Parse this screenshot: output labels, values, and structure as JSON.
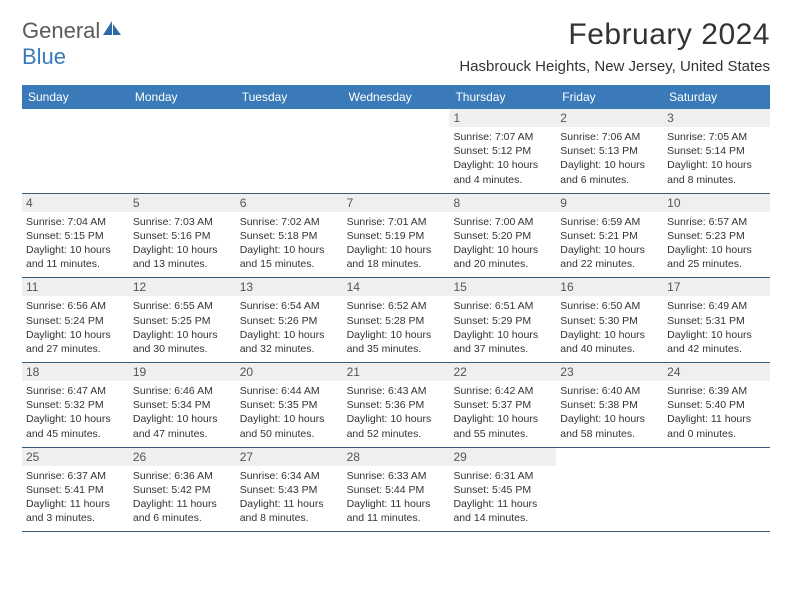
{
  "logo": {
    "part1": "General",
    "part2": "Blue"
  },
  "title": "February 2024",
  "subtitle": "Hasbrouck Heights, New Jersey, United States",
  "colors": {
    "header_bg": "#3a7ab8",
    "header_text": "#ffffff",
    "date_bg": "#efefef",
    "rule": "#3a5a7a",
    "text": "#333333"
  },
  "day_headers": [
    "Sunday",
    "Monday",
    "Tuesday",
    "Wednesday",
    "Thursday",
    "Friday",
    "Saturday"
  ],
  "weeks": [
    [
      {
        "date": "",
        "lines": []
      },
      {
        "date": "",
        "lines": []
      },
      {
        "date": "",
        "lines": []
      },
      {
        "date": "",
        "lines": []
      },
      {
        "date": "1",
        "lines": [
          "Sunrise: 7:07 AM",
          "Sunset: 5:12 PM",
          "Daylight: 10 hours",
          "and 4 minutes."
        ]
      },
      {
        "date": "2",
        "lines": [
          "Sunrise: 7:06 AM",
          "Sunset: 5:13 PM",
          "Daylight: 10 hours",
          "and 6 minutes."
        ]
      },
      {
        "date": "3",
        "lines": [
          "Sunrise: 7:05 AM",
          "Sunset: 5:14 PM",
          "Daylight: 10 hours",
          "and 8 minutes."
        ]
      }
    ],
    [
      {
        "date": "4",
        "lines": [
          "Sunrise: 7:04 AM",
          "Sunset: 5:15 PM",
          "Daylight: 10 hours",
          "and 11 minutes."
        ]
      },
      {
        "date": "5",
        "lines": [
          "Sunrise: 7:03 AM",
          "Sunset: 5:16 PM",
          "Daylight: 10 hours",
          "and 13 minutes."
        ]
      },
      {
        "date": "6",
        "lines": [
          "Sunrise: 7:02 AM",
          "Sunset: 5:18 PM",
          "Daylight: 10 hours",
          "and 15 minutes."
        ]
      },
      {
        "date": "7",
        "lines": [
          "Sunrise: 7:01 AM",
          "Sunset: 5:19 PM",
          "Daylight: 10 hours",
          "and 18 minutes."
        ]
      },
      {
        "date": "8",
        "lines": [
          "Sunrise: 7:00 AM",
          "Sunset: 5:20 PM",
          "Daylight: 10 hours",
          "and 20 minutes."
        ]
      },
      {
        "date": "9",
        "lines": [
          "Sunrise: 6:59 AM",
          "Sunset: 5:21 PM",
          "Daylight: 10 hours",
          "and 22 minutes."
        ]
      },
      {
        "date": "10",
        "lines": [
          "Sunrise: 6:57 AM",
          "Sunset: 5:23 PM",
          "Daylight: 10 hours",
          "and 25 minutes."
        ]
      }
    ],
    [
      {
        "date": "11",
        "lines": [
          "Sunrise: 6:56 AM",
          "Sunset: 5:24 PM",
          "Daylight: 10 hours",
          "and 27 minutes."
        ]
      },
      {
        "date": "12",
        "lines": [
          "Sunrise: 6:55 AM",
          "Sunset: 5:25 PM",
          "Daylight: 10 hours",
          "and 30 minutes."
        ]
      },
      {
        "date": "13",
        "lines": [
          "Sunrise: 6:54 AM",
          "Sunset: 5:26 PM",
          "Daylight: 10 hours",
          "and 32 minutes."
        ]
      },
      {
        "date": "14",
        "lines": [
          "Sunrise: 6:52 AM",
          "Sunset: 5:28 PM",
          "Daylight: 10 hours",
          "and 35 minutes."
        ]
      },
      {
        "date": "15",
        "lines": [
          "Sunrise: 6:51 AM",
          "Sunset: 5:29 PM",
          "Daylight: 10 hours",
          "and 37 minutes."
        ]
      },
      {
        "date": "16",
        "lines": [
          "Sunrise: 6:50 AM",
          "Sunset: 5:30 PM",
          "Daylight: 10 hours",
          "and 40 minutes."
        ]
      },
      {
        "date": "17",
        "lines": [
          "Sunrise: 6:49 AM",
          "Sunset: 5:31 PM",
          "Daylight: 10 hours",
          "and 42 minutes."
        ]
      }
    ],
    [
      {
        "date": "18",
        "lines": [
          "Sunrise: 6:47 AM",
          "Sunset: 5:32 PM",
          "Daylight: 10 hours",
          "and 45 minutes."
        ]
      },
      {
        "date": "19",
        "lines": [
          "Sunrise: 6:46 AM",
          "Sunset: 5:34 PM",
          "Daylight: 10 hours",
          "and 47 minutes."
        ]
      },
      {
        "date": "20",
        "lines": [
          "Sunrise: 6:44 AM",
          "Sunset: 5:35 PM",
          "Daylight: 10 hours",
          "and 50 minutes."
        ]
      },
      {
        "date": "21",
        "lines": [
          "Sunrise: 6:43 AM",
          "Sunset: 5:36 PM",
          "Daylight: 10 hours",
          "and 52 minutes."
        ]
      },
      {
        "date": "22",
        "lines": [
          "Sunrise: 6:42 AM",
          "Sunset: 5:37 PM",
          "Daylight: 10 hours",
          "and 55 minutes."
        ]
      },
      {
        "date": "23",
        "lines": [
          "Sunrise: 6:40 AM",
          "Sunset: 5:38 PM",
          "Daylight: 10 hours",
          "and 58 minutes."
        ]
      },
      {
        "date": "24",
        "lines": [
          "Sunrise: 6:39 AM",
          "Sunset: 5:40 PM",
          "Daylight: 11 hours",
          "and 0 minutes."
        ]
      }
    ],
    [
      {
        "date": "25",
        "lines": [
          "Sunrise: 6:37 AM",
          "Sunset: 5:41 PM",
          "Daylight: 11 hours",
          "and 3 minutes."
        ]
      },
      {
        "date": "26",
        "lines": [
          "Sunrise: 6:36 AM",
          "Sunset: 5:42 PM",
          "Daylight: 11 hours",
          "and 6 minutes."
        ]
      },
      {
        "date": "27",
        "lines": [
          "Sunrise: 6:34 AM",
          "Sunset: 5:43 PM",
          "Daylight: 11 hours",
          "and 8 minutes."
        ]
      },
      {
        "date": "28",
        "lines": [
          "Sunrise: 6:33 AM",
          "Sunset: 5:44 PM",
          "Daylight: 11 hours",
          "and 11 minutes."
        ]
      },
      {
        "date": "29",
        "lines": [
          "Sunrise: 6:31 AM",
          "Sunset: 5:45 PM",
          "Daylight: 11 hours",
          "and 14 minutes."
        ]
      },
      {
        "date": "",
        "lines": []
      },
      {
        "date": "",
        "lines": []
      }
    ]
  ]
}
